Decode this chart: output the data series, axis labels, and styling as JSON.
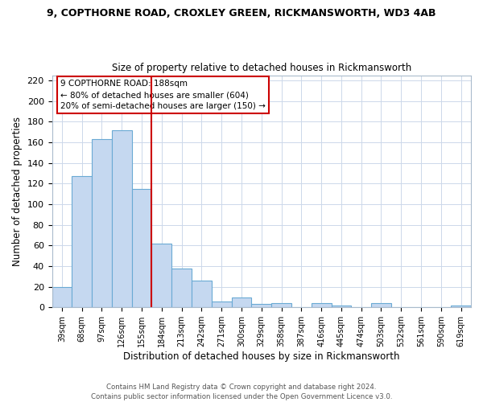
{
  "title": "9, COPTHORNE ROAD, CROXLEY GREEN, RICKMANSWORTH, WD3 4AB",
  "subtitle": "Size of property relative to detached houses in Rickmansworth",
  "xlabel": "Distribution of detached houses by size in Rickmansworth",
  "ylabel": "Number of detached properties",
  "bar_labels": [
    "39sqm",
    "68sqm",
    "97sqm",
    "126sqm",
    "155sqm",
    "184sqm",
    "213sqm",
    "242sqm",
    "271sqm",
    "300sqm",
    "329sqm",
    "358sqm",
    "387sqm",
    "416sqm",
    "445sqm",
    "474sqm",
    "503sqm",
    "532sqm",
    "561sqm",
    "590sqm",
    "619sqm"
  ],
  "bar_values": [
    20,
    127,
    163,
    172,
    115,
    62,
    38,
    26,
    6,
    10,
    3,
    4,
    0,
    4,
    2,
    0,
    4,
    0,
    0,
    0,
    2
  ],
  "bar_color": "#c5d8f0",
  "bar_edge_color": "#6aaad4",
  "vline_color": "#cc0000",
  "vline_x": 4.5,
  "ylim": [
    0,
    225
  ],
  "yticks": [
    0,
    20,
    40,
    60,
    80,
    100,
    120,
    140,
    160,
    180,
    200,
    220
  ],
  "annotation_title": "9 COPTHORNE ROAD: 188sqm",
  "annotation_line1": "← 80% of detached houses are smaller (604)",
  "annotation_line2": "20% of semi-detached houses are larger (150) →",
  "annotation_box_color": "#ffffff",
  "annotation_box_edge": "#cc0000",
  "footer_line1": "Contains HM Land Registry data © Crown copyright and database right 2024.",
  "footer_line2": "Contains public sector information licensed under the Open Government Licence v3.0.",
  "background_color": "#ffffff",
  "grid_color": "#ccd8ea"
}
